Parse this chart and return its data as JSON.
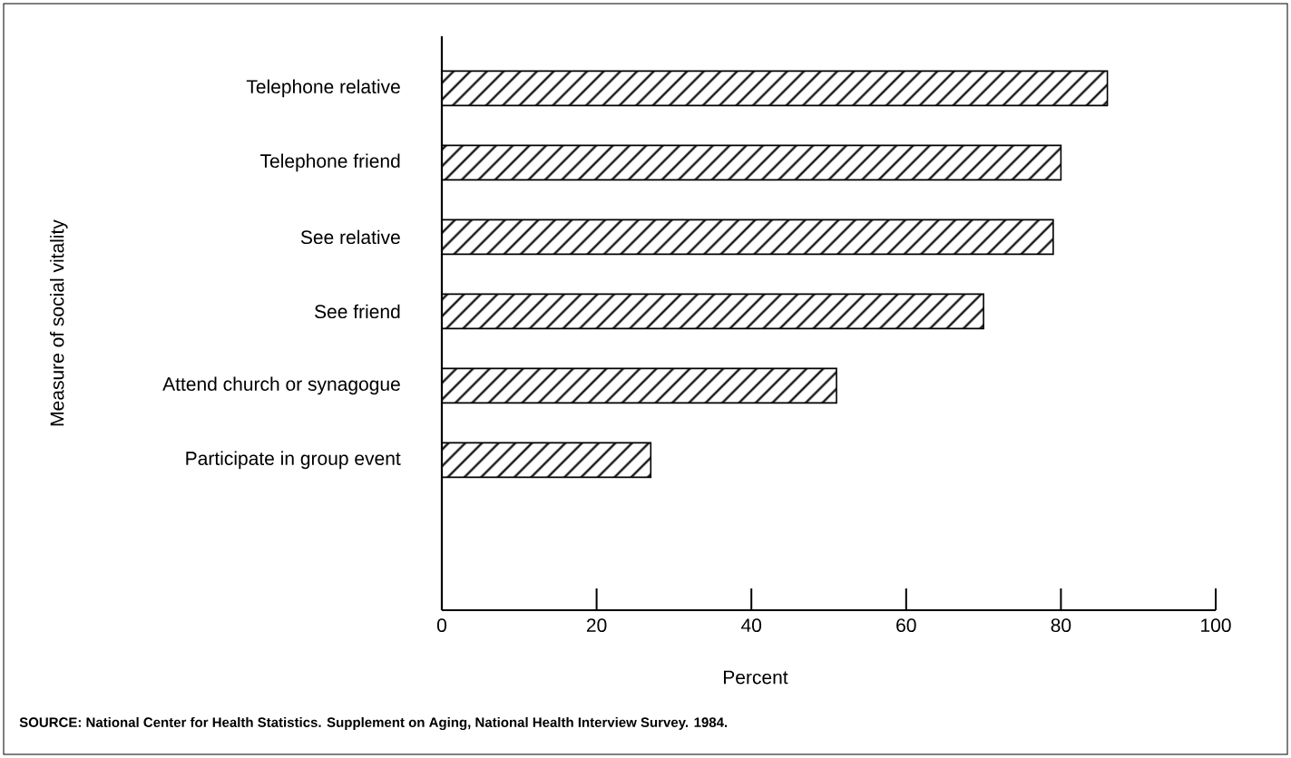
{
  "chart_data": {
    "type": "bar",
    "orientation": "horizontal",
    "categories": [
      "Telephone relative",
      "Telephone friend",
      "See relative",
      "See friend",
      "Attend church or synagogue",
      "Participate in group event"
    ],
    "values": [
      86,
      80,
      79,
      70,
      51,
      27
    ],
    "color": "#000000",
    "xlabel": "Percent",
    "ylabel": "Measure of social vitality",
    "xlim": [
      0,
      100
    ],
    "xticks": [
      0,
      20,
      40,
      60,
      80,
      100
    ],
    "annotations": [
      "SOURCE:  National Center for Health Statistics. Supplement on Aging, National Health Interview Survey. 1984."
    ]
  }
}
